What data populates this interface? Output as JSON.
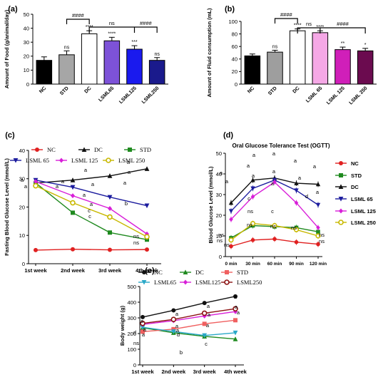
{
  "chart_data": [
    {
      "panel": "(a)",
      "type": "bar",
      "ylabel": "Amount of Food (g/animal/day)",
      "ylim": [
        0,
        50
      ],
      "yticks": [
        0,
        10,
        20,
        30,
        40,
        50
      ],
      "categories": [
        "NC",
        "STD",
        "DC",
        "LSML65",
        "LSML125",
        "LSML250"
      ],
      "values": [
        17,
        21,
        36,
        31,
        25,
        17
      ],
      "errors": [
        2.5,
        2.8,
        2.2,
        2.5,
        2.5,
        2
      ],
      "bar_colors": [
        "#000000",
        "#a6a6a6",
        "#ffffff",
        "#7d52d8",
        "#1a1aee",
        "#1a1a8c"
      ],
      "significance": [
        "",
        "ns",
        "****",
        "****",
        "***",
        "ns"
      ],
      "brackets": [
        {
          "from": 1,
          "to": 2,
          "label": "####"
        },
        {
          "from": 2,
          "to": 4,
          "label": "ns"
        },
        {
          "from": 2,
          "to": 5,
          "label": "####"
        }
      ]
    },
    {
      "panel": "(b)",
      "type": "bar",
      "ylabel": "Amount of Fluid consumption  (mL)",
      "ylim": [
        0,
        100
      ],
      "yticks": [
        0,
        20,
        40,
        60,
        80,
        100
      ],
      "categories": [
        "NC",
        "STD",
        "DC",
        "LSML 65",
        "LSML 125",
        "LSML 250"
      ],
      "values": [
        45,
        51,
        85,
        82,
        55,
        53
      ],
      "errors": [
        3,
        3,
        3,
        3,
        4,
        4
      ],
      "bar_colors": [
        "#000000",
        "#9e9e9e",
        "#ffffff",
        "#f5a8e6",
        "#d01fb9",
        "#6b0b4f"
      ],
      "significance": [
        "",
        "ns",
        "****",
        "****",
        "**",
        "*"
      ],
      "brackets": [
        {
          "from": 1,
          "to": 2,
          "label": "####"
        },
        {
          "from": 2,
          "to": 3,
          "label": "ns"
        },
        {
          "from": 2,
          "to": 5,
          "label": "####"
        }
      ]
    },
    {
      "panel": "(c)",
      "type": "line",
      "ylabel": "Fasting Blood Glucose Level (mmol/L)",
      "x": [
        "1st week",
        "2nd week",
        "3rd week",
        "4th week"
      ],
      "ylim": [
        0,
        40
      ],
      "yticks": [
        0,
        10,
        20,
        30,
        40
      ],
      "series": [
        {
          "name": "NC",
          "color": "#e02020",
          "marker": "circle",
          "values": [
            4.8,
            5.1,
            4.9,
            5.0
          ]
        },
        {
          "name": "DC",
          "color": "#111111",
          "marker": "triangle",
          "values": [
            28.5,
            29.5,
            31,
            33.5
          ]
        },
        {
          "name": "STD",
          "color": "#1f8a1f",
          "marker": "square",
          "values": [
            28.5,
            18,
            11,
            8.5
          ]
        },
        {
          "name": "LSML 65",
          "color": "#1c1c9e",
          "marker": "triangle-down",
          "values": [
            29.5,
            27,
            23.5,
            20.5
          ]
        },
        {
          "name": "LSML 125",
          "color": "#d81ed8",
          "marker": "diamond",
          "values": [
            29,
            24,
            19.5,
            10.5
          ]
        },
        {
          "name": "LSML 250",
          "color": "#c8b800",
          "marker": "circle-ring",
          "values": [
            27.5,
            21.5,
            16.5,
            9.5
          ]
        }
      ],
      "annotations": [
        "a",
        "a",
        "a",
        "a",
        "a",
        "a",
        "a",
        "a",
        "a",
        "a",
        "a",
        "b",
        "c",
        "c",
        "ns",
        "ns"
      ]
    },
    {
      "panel": "(d)",
      "type": "line",
      "title": "Oral Glucose Tolerance Test (OGTT)",
      "ylabel": "Blood Glucose Level (mmol/L)",
      "x": [
        "0 min",
        "30 min",
        "60 min",
        "90 min",
        "120 min"
      ],
      "ylim": [
        0,
        50
      ],
      "yticks": [
        0,
        10,
        20,
        30,
        40,
        50
      ],
      "series": [
        {
          "name": "NC",
          "color": "#e02020",
          "marker": "circle",
          "values": [
            5,
            8,
            8.5,
            7,
            6
          ]
        },
        {
          "name": "STD",
          "color": "#1f8a1f",
          "marker": "square",
          "values": [
            9,
            15,
            14.5,
            14,
            12
          ]
        },
        {
          "name": "DC",
          "color": "#111111",
          "marker": "triangle",
          "values": [
            26,
            37,
            38,
            35.5,
            35
          ]
        },
        {
          "name": "LSML 65",
          "color": "#1c1c9e",
          "marker": "triangle-down",
          "values": [
            22,
            33,
            37,
            32,
            25
          ]
        },
        {
          "name": "LSML 125",
          "color": "#d81ed8",
          "marker": "diamond",
          "values": [
            18,
            29,
            36,
            26,
            14
          ]
        },
        {
          "name": "LSML 250",
          "color": "#c8b800",
          "marker": "circle-ring",
          "values": [
            8,
            16,
            15,
            13,
            10
          ]
        }
      ],
      "annotations": [
        "a",
        "a",
        "a",
        "a",
        "a",
        "a",
        "a",
        "a",
        "a",
        "a",
        "a",
        "a",
        "d",
        "c",
        "c",
        "ns",
        "ns",
        "ns",
        "ns",
        "ns",
        "ns",
        "ns",
        "ns",
        "ns"
      ]
    },
    {
      "panel": "(e)",
      "type": "line",
      "ylabel": "Body weight (g)",
      "x": [
        "1st week",
        "2nd week",
        "3rd week",
        "4th week"
      ],
      "ylim": [
        0,
        500
      ],
      "yticks": [
        0,
        100,
        200,
        300,
        400,
        500
      ],
      "series": [
        {
          "name": "NC",
          "color": "#111111",
          "marker": "circle",
          "values": [
            305,
            348,
            395,
            437
          ]
        },
        {
          "name": "DC",
          "color": "#1f8a1f",
          "marker": "triangle",
          "values": [
            237,
            205,
            182,
            165
          ]
        },
        {
          "name": "STD",
          "color": "#f06060",
          "marker": "square",
          "values": [
            212,
            228,
            262,
            285
          ]
        },
        {
          "name": "LSML65",
          "color": "#2aa8c8",
          "marker": "triangle-down",
          "values": [
            240,
            213,
            188,
            205
          ]
        },
        {
          "name": "LSML125",
          "color": "#d81ed8",
          "marker": "diamond",
          "values": [
            258,
            282,
            312,
            340
          ]
        },
        {
          "name": "LSML250",
          "color": "#8a1010",
          "marker": "circle-ring",
          "values": [
            265,
            290,
            330,
            358
          ]
        }
      ],
      "annotations": [
        "a",
        "a",
        "a",
        "a",
        "a",
        "a",
        "a",
        "a",
        "a",
        "a",
        "a",
        "a",
        "d",
        "b",
        "d",
        "c",
        "ns"
      ]
    }
  ]
}
